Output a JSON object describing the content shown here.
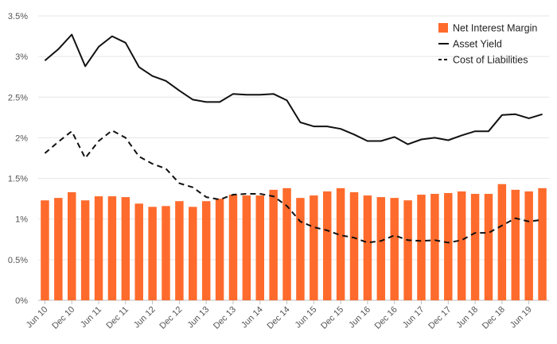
{
  "chart_data": {
    "type": "bar",
    "title": "",
    "xlabel": "",
    "ylabel": "",
    "ylim": [
      0,
      3.5
    ],
    "y_ticks": [
      "0%",
      "0.5%",
      "1%",
      "1.5%",
      "2%",
      "2.5%",
      "3%",
      "3.5%"
    ],
    "y_tick_values": [
      0,
      0.5,
      1,
      1.5,
      2,
      2.5,
      3,
      3.5
    ],
    "grid": "horizontal",
    "legend_position": "top-right",
    "categories": [
      "Jun 10",
      "Sep 10",
      "Dec 10",
      "Mar 11",
      "Jun 11",
      "Sep 11",
      "Dec 11",
      "Mar 12",
      "Jun 12",
      "Sep 12",
      "Dec 12",
      "Mar 13",
      "Jun 13",
      "Sep 13",
      "Dec 13",
      "Mar 14",
      "Jun 14",
      "Sep 14",
      "Dec 14",
      "Mar 15",
      "Jun 15",
      "Sep 15",
      "Dec 15",
      "Mar 16",
      "Jun 16",
      "Sep 16",
      "Dec 16",
      "Mar 17",
      "Jun 17",
      "Sep 17",
      "Dec 17",
      "Mar 18",
      "Jun 18",
      "Sep 18",
      "Dec 18",
      "Mar 19",
      "Jun 19",
      "Sep 19"
    ],
    "x_tick_labels": [
      "Jun 10",
      "Dec 10",
      "Jun 11",
      "Dec 11",
      "Jun 12",
      "Dec 12",
      "Jun 13",
      "Dec 13",
      "Jun 14",
      "Dec 14",
      "Jun 15",
      "Dec 15",
      "Jun 16",
      "Dec 16",
      "Jun 17",
      "Dec 17",
      "Jun 18",
      "Dec 18",
      "Jun 19"
    ],
    "series": [
      {
        "name": "Net Interest Margin",
        "kind": "bar",
        "color": "#ff6b2c",
        "values": [
          1.23,
          1.26,
          1.33,
          1.23,
          1.28,
          1.28,
          1.27,
          1.19,
          1.15,
          1.16,
          1.22,
          1.15,
          1.22,
          1.25,
          1.3,
          1.29,
          1.29,
          1.36,
          1.38,
          1.26,
          1.29,
          1.34,
          1.38,
          1.33,
          1.29,
          1.27,
          1.26,
          1.23,
          1.3,
          1.31,
          1.32,
          1.34,
          1.31,
          1.31,
          1.43,
          1.36,
          1.34,
          1.38
        ]
      },
      {
        "name": "Asset Yield",
        "kind": "line-solid",
        "color": "#111111",
        "values": [
          2.95,
          3.09,
          3.27,
          2.88,
          3.12,
          3.25,
          3.17,
          2.87,
          2.76,
          2.7,
          2.58,
          2.47,
          2.44,
          2.44,
          2.54,
          2.53,
          2.53,
          2.54,
          2.46,
          2.19,
          2.14,
          2.14,
          2.11,
          2.04,
          1.96,
          1.96,
          2.01,
          1.92,
          1.98,
          2.0,
          1.97,
          2.03,
          2.08,
          2.08,
          2.28,
          2.29,
          2.24,
          2.29
        ]
      },
      {
        "name": "Cost of Liabilities",
        "kind": "line-dashed",
        "color": "#111111",
        "values": [
          1.81,
          1.95,
          2.08,
          1.75,
          1.96,
          2.09,
          2.0,
          1.77,
          1.68,
          1.62,
          1.44,
          1.39,
          1.27,
          1.24,
          1.3,
          1.31,
          1.31,
          1.28,
          1.16,
          0.97,
          0.9,
          0.86,
          0.8,
          0.77,
          0.71,
          0.73,
          0.8,
          0.74,
          0.73,
          0.74,
          0.71,
          0.74,
          0.83,
          0.83,
          0.92,
          1.01,
          0.97,
          0.99
        ]
      }
    ]
  }
}
